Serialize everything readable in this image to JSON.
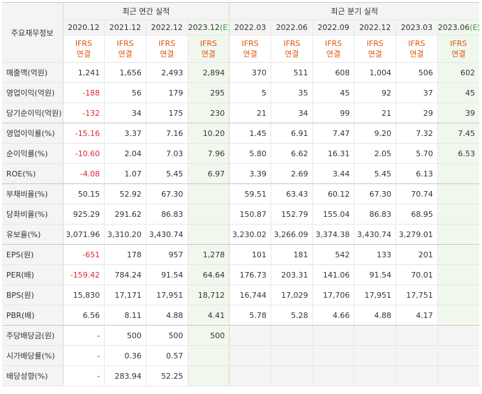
{
  "header": {
    "row_head": "주요재무정보",
    "annual_group": "최근 연간 실적",
    "quarter_group": "최근 분기 실적",
    "annual_periods": [
      "2020.12",
      "2021.12",
      "2022.12",
      "2023.12"
    ],
    "annual_est_mark": "(E)",
    "quarter_periods": [
      "2022.03",
      "2022.06",
      "2022.09",
      "2022.12",
      "2023.03",
      "2023.06"
    ],
    "quarter_est_mark": "(E)",
    "std_line1": "IFRS",
    "std_line2": "연결"
  },
  "rows": [
    {
      "label": "매출액(억원)",
      "annual": [
        "1,241",
        "1,656",
        "2,493",
        "2,894"
      ],
      "quarter": [
        "370",
        "511",
        "608",
        "1,004",
        "506",
        "602"
      ]
    },
    {
      "label": "영업이익(억원)",
      "annual": [
        "-188",
        "56",
        "179",
        "295"
      ],
      "quarter": [
        "5",
        "35",
        "45",
        "92",
        "37",
        "45"
      ]
    },
    {
      "label": "당기순이익(억원)",
      "annual": [
        "-132",
        "34",
        "175",
        "230"
      ],
      "quarter": [
        "21",
        "34",
        "99",
        "21",
        "29",
        "39"
      ]
    },
    {
      "label": "영업이익률(%)",
      "annual": [
        "-15.16",
        "3.37",
        "7.16",
        "10.20"
      ],
      "quarter": [
        "1.45",
        "6.91",
        "7.47",
        "9.20",
        "7.32",
        "7.45"
      ]
    },
    {
      "label": "순이익률(%)",
      "annual": [
        "-10.60",
        "2.04",
        "7.03",
        "7.96"
      ],
      "quarter": [
        "5.80",
        "6.62",
        "16.31",
        "2.05",
        "5.70",
        "6.53"
      ]
    },
    {
      "label": "ROE(%)",
      "annual": [
        "-4.08",
        "1.07",
        "5.45",
        "6.97"
      ],
      "quarter": [
        "3.39",
        "2.69",
        "3.44",
        "5.45",
        "6.13",
        ""
      ]
    },
    {
      "label": "부채비율(%)",
      "annual": [
        "50.15",
        "52.92",
        "67.30",
        ""
      ],
      "quarter": [
        "59.51",
        "63.43",
        "60.12",
        "67.30",
        "70.74",
        ""
      ]
    },
    {
      "label": "당좌비율(%)",
      "annual": [
        "925.29",
        "291.62",
        "86.83",
        ""
      ],
      "quarter": [
        "150.87",
        "152.79",
        "155.04",
        "86.83",
        "68.95",
        ""
      ]
    },
    {
      "label": "유보율(%)",
      "annual": [
        "3,071.96",
        "3,310.20",
        "3,430.74",
        ""
      ],
      "quarter": [
        "3,230.02",
        "3,266.09",
        "3,374.38",
        "3,430.74",
        "3,279.01",
        ""
      ]
    },
    {
      "label": "EPS(원)",
      "annual": [
        "-651",
        "178",
        "957",
        "1,278"
      ],
      "quarter": [
        "101",
        "181",
        "542",
        "133",
        "201",
        ""
      ]
    },
    {
      "label": "PER(배)",
      "annual": [
        "-159.42",
        "784.24",
        "91.54",
        "64.64"
      ],
      "quarter": [
        "176.73",
        "203.31",
        "141.06",
        "91.54",
        "70.01",
        ""
      ]
    },
    {
      "label": "BPS(원)",
      "annual": [
        "15,830",
        "17,171",
        "17,951",
        "18,712"
      ],
      "quarter": [
        "16,744",
        "17,029",
        "17,706",
        "17,951",
        "17,751",
        ""
      ]
    },
    {
      "label": "PBR(배)",
      "annual": [
        "6.56",
        "8.11",
        "4.88",
        "4.41"
      ],
      "quarter": [
        "5.78",
        "5.28",
        "4.66",
        "4.88",
        "4.17",
        ""
      ]
    },
    {
      "label": "주당배당금(원)",
      "annual": [
        "-",
        "500",
        "500",
        "500"
      ],
      "quarter": [
        "",
        "",
        "",
        "",
        "",
        ""
      ]
    },
    {
      "label": "시가배당률(%)",
      "annual": [
        "-",
        "0.36",
        "0.57",
        ""
      ],
      "quarter": [
        "",
        "",
        "",
        "",
        "",
        ""
      ]
    },
    {
      "label": "배당성향(%)",
      "annual": [
        "-",
        "283.94",
        "52.25",
        ""
      ],
      "quarter": [
        "",
        "",
        "",
        "",
        "",
        ""
      ]
    }
  ],
  "colors": {
    "negative": "#e0272f",
    "standard": "#e0560b",
    "estimate_bg": "#f0f8ee",
    "header_bg": "#f4f4f4"
  }
}
